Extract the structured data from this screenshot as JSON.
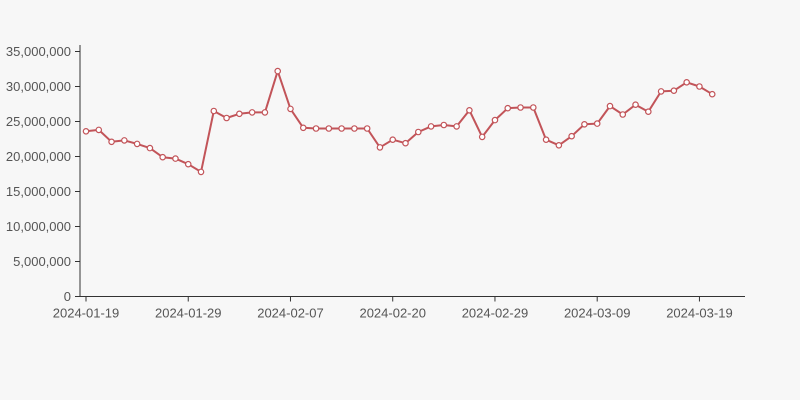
{
  "page": {
    "background_color": "#f7f7f7",
    "axis_color": "#333333",
    "tick_label_color": "#555555"
  },
  "chart_data": {
    "type": "line",
    "title": "",
    "xlabel": "",
    "ylabel": "",
    "legend": null,
    "grid": false,
    "series_color": "#c25459",
    "marker_style": "hollow-circle",
    "marker_fill": "#ffffff",
    "ylim": [
      0,
      35000000
    ],
    "y_ticks": [
      0,
      5000000,
      10000000,
      15000000,
      20000000,
      25000000,
      30000000,
      35000000
    ],
    "y_tick_labels": [
      "0",
      "5,000,000",
      "10,000,000",
      "15,000,000",
      "20,000,000",
      "25,000,000",
      "30,000,000",
      "35,000,000"
    ],
    "x_tick_labels": [
      "2024-01-19",
      "2024-01-29",
      "2024-02-07",
      "2024-02-20",
      "2024-02-29",
      "2024-03-09",
      "2024-03-19"
    ],
    "x_tick_every": 8,
    "values": [
      23600000,
      23800000,
      22100000,
      22300000,
      21800000,
      21200000,
      19900000,
      19700000,
      18900000,
      17800000,
      26500000,
      25500000,
      26100000,
      26300000,
      26300000,
      32200000,
      26800000,
      24100000,
      24000000,
      24000000,
      24000000,
      24000000,
      24000000,
      21300000,
      22400000,
      21900000,
      23500000,
      24300000,
      24500000,
      24300000,
      26600000,
      22800000,
      25200000,
      26900000,
      27000000,
      27000000,
      22400000,
      21600000,
      22900000,
      24600000,
      24700000,
      27200000,
      26000000,
      27400000,
      26400000,
      29300000,
      29400000,
      30600000,
      30000000,
      28900000
    ]
  }
}
